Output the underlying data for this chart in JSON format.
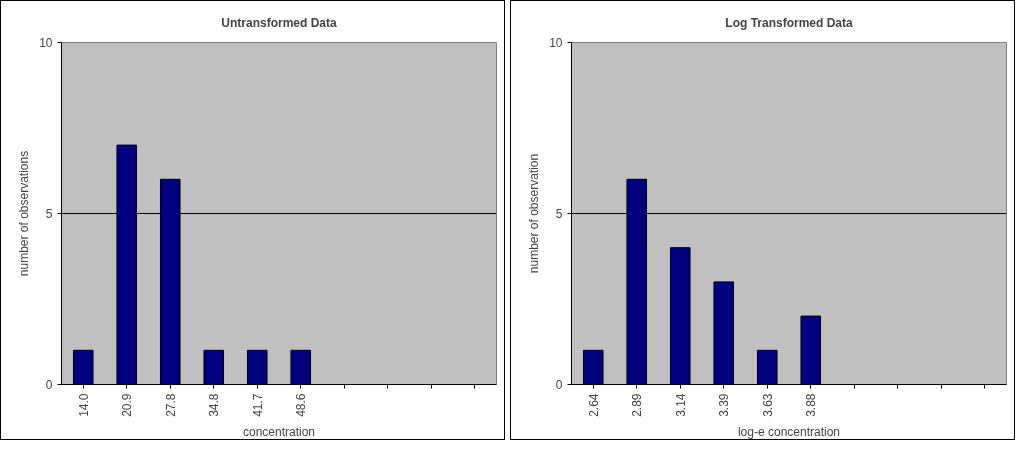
{
  "chart_data": [
    {
      "type": "bar",
      "title": "Untransformed Data",
      "xlabel": "concentration",
      "ylabel": "number of observations",
      "categories": [
        "14.0",
        "20.9",
        "27.8",
        "34.8",
        "41.7",
        "48.6",
        null,
        null,
        null,
        null
      ],
      "values": [
        1,
        7,
        6,
        1,
        1,
        1,
        null,
        null,
        null,
        null
      ],
      "color": "#000080",
      "ylim": [
        0,
        10
      ],
      "yticks": [
        0,
        5,
        10
      ],
      "grid": "y"
    },
    {
      "type": "bar",
      "title": "Log Transformed Data",
      "xlabel": "log-e concentration",
      "ylabel": "number of observation",
      "categories": [
        "2.64",
        "2.89",
        "3.14",
        "3.39",
        "3.63",
        "3.88",
        null,
        null,
        null,
        null
      ],
      "values": [
        1,
        6,
        4,
        3,
        1,
        2,
        null,
        null,
        null,
        null
      ],
      "color": "#000080",
      "ylim": [
        0,
        10
      ],
      "yticks": [
        0,
        5,
        10
      ],
      "grid": "y"
    }
  ]
}
